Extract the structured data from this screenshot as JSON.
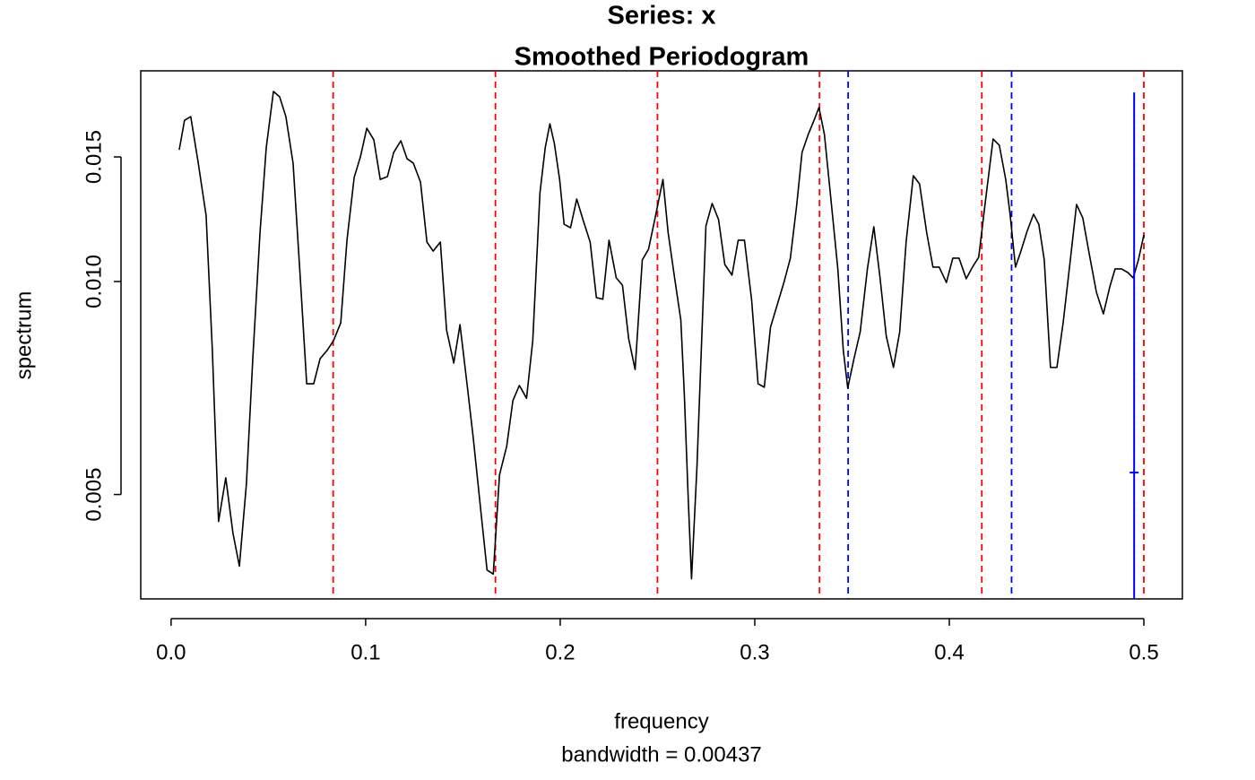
{
  "chart_data": {
    "type": "line",
    "title": "Series: x",
    "subtitle": "Smoothed Periodogram",
    "xlabel": "frequency",
    "note": "bandwidth = 0.00437",
    "ylabel": "spectrum",
    "log_y": true,
    "xlim": [
      -0.0156,
      0.5198
    ],
    "ylim": [
      0.00356,
      0.01985
    ],
    "xticks": [
      {
        "value": 0,
        "label": "0.0"
      },
      0.1,
      0.2,
      0.3,
      0.4,
      0.5
    ],
    "yticks": [
      0.005,
      {
        "value": 0.01,
        "label": "0.010"
      },
      0.015
    ],
    "vlines": [
      {
        "x": 0.0833,
        "color": "#ff0000"
      },
      {
        "x": 0.1667,
        "color": "#ff0000"
      },
      {
        "x": 0.25,
        "color": "#ff0000"
      },
      {
        "x": 0.3333,
        "color": "#ff0000"
      },
      {
        "x": 0.4167,
        "color": "#ff0000"
      },
      {
        "x": 0.5,
        "color": "#ff0000"
      },
      {
        "x": 0.348,
        "color": "#0000ff"
      },
      {
        "x": 0.432,
        "color": "#0000ff"
      }
    ],
    "ci_bar": {
      "x": 0.495,
      "center": 0.00537,
      "lower": 0.0033,
      "upper": 0.0185,
      "color": "#0000ff"
    },
    "series": [
      {
        "name": "x",
        "color": "#000000",
        "x": [
          0.0042,
          0.0069,
          0.0101,
          0.0138,
          0.018,
          0.0212,
          0.0244,
          0.0281,
          0.0318,
          0.0351,
          0.0387,
          0.042,
          0.0457,
          0.0489,
          0.0526,
          0.0558,
          0.059,
          0.0627,
          0.0664,
          0.0697,
          0.0733,
          0.0766,
          0.0803,
          0.0835,
          0.0872,
          0.0904,
          0.0941,
          0.0973,
          0.1006,
          0.1042,
          0.1075,
          0.1112,
          0.1144,
          0.1181,
          0.1213,
          0.1245,
          0.1282,
          0.1315,
          0.1347,
          0.1384,
          0.1416,
          0.1453,
          0.1485,
          0.1522,
          0.1554,
          0.1591,
          0.1624,
          0.1656,
          0.1688,
          0.1725,
          0.1757,
          0.179,
          0.1827,
          0.1859,
          0.1896,
          0.1923,
          0.1947,
          0.197,
          0.1997,
          0.202,
          0.2053,
          0.2085,
          0.2117,
          0.2154,
          0.2186,
          0.2219,
          0.2251,
          0.2288,
          0.232,
          0.2352,
          0.2385,
          0.2422,
          0.2454,
          0.2486,
          0.2528,
          0.2555,
          0.2588,
          0.262,
          0.2638,
          0.2657,
          0.2675,
          0.2703,
          0.2749,
          0.2781,
          0.2814,
          0.2846,
          0.2883,
          0.2915,
          0.2947,
          0.2984,
          0.3017,
          0.3049,
          0.3081,
          0.3118,
          0.315,
          0.3183,
          0.3215,
          0.3243,
          0.3275,
          0.3307,
          0.333,
          0.3358,
          0.3395,
          0.3427,
          0.3455,
          0.3478,
          0.351,
          0.3542,
          0.3579,
          0.3612,
          0.3644,
          0.3676,
          0.3713,
          0.3745,
          0.3778,
          0.3815,
          0.3847,
          0.3884,
          0.3916,
          0.3948,
          0.3985,
          0.4018,
          0.405,
          0.4087,
          0.4119,
          0.4151,
          0.4188,
          0.4225,
          0.4257,
          0.429,
          0.4313,
          0.434,
          0.4368,
          0.44,
          0.4433,
          0.446,
          0.4488,
          0.452,
          0.4553,
          0.4585,
          0.4622,
          0.4654,
          0.4686,
          0.4719,
          0.4756,
          0.4792,
          0.4825,
          0.4852,
          0.4885,
          0.4917,
          0.4945,
          0.4972,
          0.5
        ],
        "values": [
          0.01535,
          0.0169,
          0.0171,
          0.0148,
          0.0124,
          0.008,
          0.00458,
          0.00528,
          0.00441,
          0.00396,
          0.00517,
          0.00778,
          0.01171,
          0.01545,
          0.01856,
          0.01824,
          0.0171,
          0.0147,
          0.01012,
          0.00717,
          0.00717,
          0.00778,
          0.008,
          0.00825,
          0.00874,
          0.01144,
          0.01403,
          0.015,
          0.01647,
          0.01586,
          0.01394,
          0.01407,
          0.01522,
          0.01581,
          0.01491,
          0.0147,
          0.01382,
          0.01137,
          0.01104,
          0.01137,
          0.00854,
          0.00767,
          0.00869,
          0.00713,
          0.00598,
          0.00477,
          0.00391,
          0.00386,
          0.00533,
          0.00585,
          0.00679,
          0.00713,
          0.00684,
          0.00825,
          0.01335,
          0.01545,
          0.01671,
          0.01567,
          0.01394,
          0.01205,
          0.01191,
          0.01308,
          0.01223,
          0.01137,
          0.00949,
          0.00944,
          0.01144,
          0.01012,
          0.00988,
          0.0083,
          0.00751,
          0.01073,
          0.01111,
          0.01223,
          0.01394,
          0.01171,
          0.01012,
          0.00882,
          0.00693,
          0.00502,
          0.0038,
          0.00548,
          0.01198,
          0.01289,
          0.01223,
          0.01057,
          0.01021,
          0.01144,
          0.01144,
          0.00941,
          0.00717,
          0.00709,
          0.00862,
          0.00932,
          0.00997,
          0.01079,
          0.01278,
          0.01522,
          0.01614,
          0.01696,
          0.01762,
          0.01614,
          0.01278,
          0.01042,
          0.008,
          0.00707,
          0.00778,
          0.00849,
          0.01042,
          0.01195,
          0.01012,
          0.00837,
          0.00756,
          0.00849,
          0.01137,
          0.01411,
          0.01374,
          0.01171,
          0.01048,
          0.01048,
          0.00997,
          0.01079,
          0.01079,
          0.01009,
          0.01048,
          0.01082,
          0.01315,
          0.0159,
          0.01558,
          0.01394,
          0.0124,
          0.01048,
          0.01104,
          0.01178,
          0.01245,
          0.01205,
          0.01073,
          0.00756,
          0.00756,
          0.00874,
          0.01073,
          0.01285,
          0.0123,
          0.01095,
          0.00966,
          0.009,
          0.00983,
          0.01042,
          0.01042,
          0.0103,
          0.01012,
          0.01073,
          0.01164
        ]
      }
    ]
  }
}
